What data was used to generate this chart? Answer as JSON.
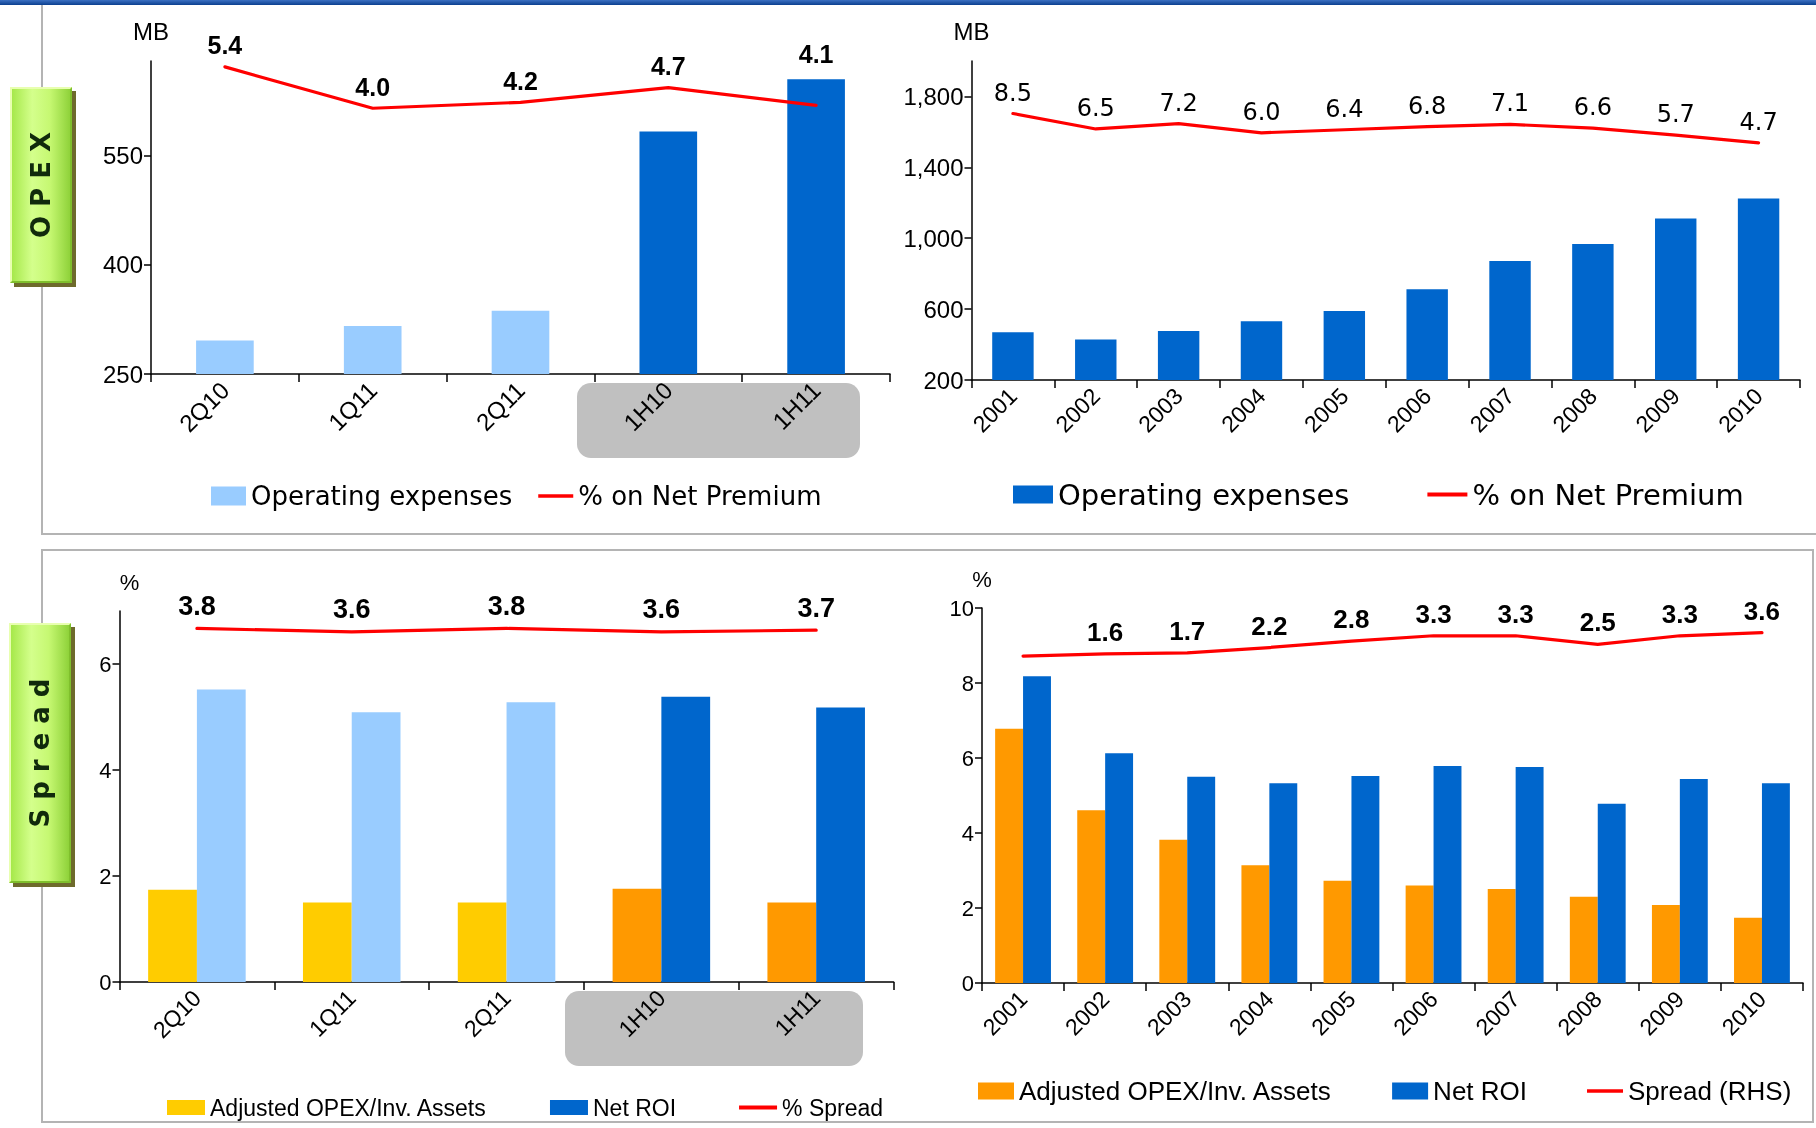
{
  "chart_data": [
    {
      "type": "bar",
      "ylabel": "MB",
      "annotations": [
        "OPEX"
      ],
      "categories": [
        "2Q10",
        "1Q11",
        "2Q11",
        "1H10",
        "1H11"
      ],
      "series": [
        {
          "name": "Operating expenses",
          "color": "#99ccff",
          "colors": [
            "#99ccff",
            "#99ccff",
            "#99ccff",
            "#0066cc",
            "#0066cc"
          ],
          "values": [
            296,
            316,
            337,
            583,
            655
          ]
        },
        {
          "name": "% on Net Premium",
          "type": "line",
          "axis": "y2",
          "color": "#ff0000",
          "values": [
            5.4,
            4.0,
            4.2,
            4.7,
            4.1
          ],
          "value_labels": [
            "5.4",
            "4.0",
            "4.2",
            "4.7",
            "4.1"
          ]
        }
      ],
      "ylim": [
        250,
        680
      ],
      "yticks": [
        250,
        400,
        550
      ],
      "y2lim": [
        -5,
        5.6
      ],
      "legend": "bottom",
      "marker": "none"
    },
    {
      "type": "bar",
      "ylabel": "MB",
      "categories": [
        "2001",
        "2002",
        "2003",
        "2004",
        "2005",
        "2006",
        "2007",
        "2008",
        "2009",
        "2010"
      ],
      "series": [
        {
          "name": "Operating expenses",
          "color": "#0066cc",
          "values": [
            469,
            429,
            476,
            532,
            589,
            712,
            872,
            968,
            1111,
            1224
          ]
        },
        {
          "name": "% on Net Premium",
          "type": "line",
          "axis": "y2",
          "color": "#ff0000",
          "values": [
            8.5,
            6.5,
            7.2,
            6.0,
            6.4,
            6.8,
            7.1,
            6.6,
            5.7,
            4.7
          ],
          "value_labels": [
            "8.5",
            "6.5",
            "7.2",
            "6.0",
            "6.4",
            "6.8",
            "7.1",
            "6.6",
            "5.7",
            "4.7"
          ]
        }
      ],
      "ylim": [
        200,
        2000
      ],
      "yticks": [
        200,
        600,
        {
          "value": 1000,
          "label": "1,000"
        },
        {
          "value": 1400,
          "label": "1,400"
        },
        {
          "value": 1800,
          "label": "1,800"
        }
      ],
      "y2lim": [
        -26,
        15.3
      ],
      "legend": "bottom",
      "marker": "none"
    },
    {
      "type": "bar",
      "ylabel": "%",
      "annotations": [
        "Spread"
      ],
      "categories": [
        "2Q10",
        "1Q11",
        "2Q11",
        "1H10",
        "1H11"
      ],
      "series": [
        {
          "name": "Adjusted OPEX/Inv. Assets",
          "color": "#ffcc00",
          "colors": [
            "#ffcc00",
            "#ffcc00",
            "#ffcc00",
            "#ff9900",
            "#ff9900"
          ],
          "values": [
            1.74,
            1.5,
            1.5,
            1.76,
            1.5
          ]
        },
        {
          "name": "Net ROI",
          "color": "#0066cc",
          "colors": [
            "#99ccff",
            "#99ccff",
            "#99ccff",
            "#0066cc",
            "#0066cc"
          ],
          "values": [
            5.52,
            5.09,
            5.28,
            5.38,
            5.18
          ]
        },
        {
          "name": "% Spread",
          "type": "line",
          "axis": "y2",
          "color": "#ff0000",
          "values": [
            3.8,
            3.6,
            3.8,
            3.6,
            3.7
          ],
          "value_labels": [
            "3.8",
            "3.6",
            "3.8",
            "3.6",
            "3.7"
          ]
        }
      ],
      "ylim": [
        0,
        7
      ],
      "yticks": [
        0,
        2,
        4,
        6
      ],
      "y2lim": [
        -16.5,
        4.8
      ],
      "legend": "bottom",
      "marker": "none"
    },
    {
      "type": "bar",
      "ylabel": "%",
      "categories": [
        "2001",
        "2002",
        "2003",
        "2004",
        "2005",
        "2006",
        "2007",
        "2008",
        "2009",
        "2010"
      ],
      "series": [
        {
          "name": "Adjusted OPEX/Inv. Assets",
          "color": "#ff9900",
          "values": [
            6.78,
            4.61,
            3.82,
            3.14,
            2.73,
            2.6,
            2.51,
            2.3,
            2.08,
            1.74
          ]
        },
        {
          "name": "Net ROI",
          "color": "#0066cc",
          "values": [
            8.18,
            6.13,
            5.5,
            5.33,
            5.52,
            5.79,
            5.76,
            4.78,
            5.44,
            5.33
          ]
        },
        {
          "name": "Spread (RHS)",
          "type": "line",
          "axis": "y2",
          "color": "#ff0000",
          "values": [
            1.4,
            1.6,
            1.7,
            2.2,
            2.8,
            3.3,
            3.3,
            2.5,
            3.3,
            3.6
          ],
          "value_labels": [
            null,
            "1.6",
            "1.7",
            "2.2",
            "2.8",
            "3.3",
            "3.3",
            "2.5",
            "3.3",
            "3.6"
          ]
        }
      ],
      "ylim": [
        0,
        10
      ],
      "yticks": [
        0,
        2,
        4,
        6,
        8,
        10
      ],
      "y2lim": [
        -29.2,
        5.9
      ],
      "legend": "bottom",
      "marker": "none"
    }
  ]
}
